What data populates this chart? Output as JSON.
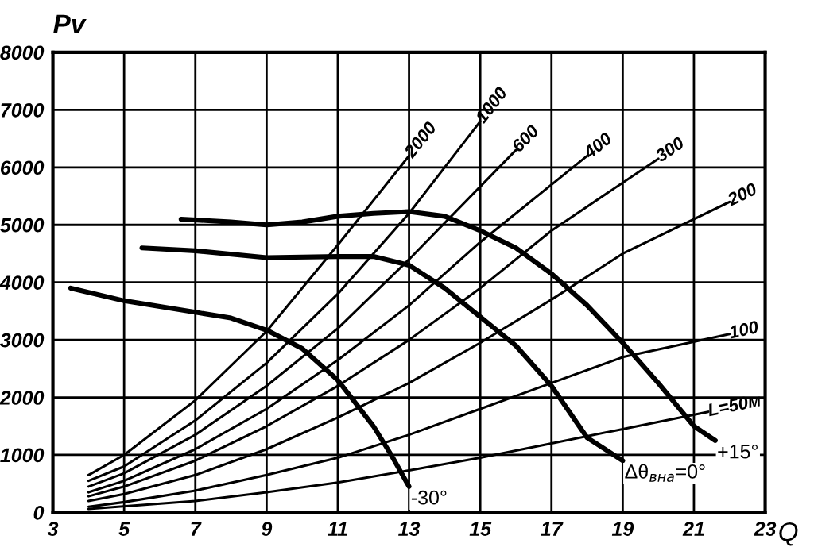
{
  "chart_data": {
    "type": "line",
    "xlabel": "Q",
    "ylabel": "Pv",
    "xlim": [
      3,
      23
    ],
    "ylim": [
      0,
      8000
    ],
    "xticks": [
      3,
      5,
      7,
      9,
      11,
      13,
      15,
      17,
      19,
      21,
      23
    ],
    "yticks": [
      0,
      1000,
      2000,
      3000,
      4000,
      5000,
      6000,
      7000,
      8000
    ],
    "grid": true,
    "legend": false,
    "marker": "none",
    "line_style": "solid",
    "series": [
      {
        "name": "-30°",
        "color": "#000000",
        "x": [
          3.5,
          5,
          7,
          8,
          9,
          10,
          11,
          12,
          12.5,
          13
        ],
        "values": [
          3900,
          3680,
          3480,
          3380,
          3170,
          2850,
          2300,
          1500,
          1000,
          450
        ]
      },
      {
        "name": "Δθ$_{вна}$=0°",
        "color": "#000000",
        "x": [
          5.5,
          7,
          9,
          11,
          12,
          13,
          14,
          15,
          16,
          17,
          18,
          19
        ],
        "values": [
          4600,
          4550,
          4430,
          4450,
          4450,
          4300,
          3900,
          3400,
          2900,
          2200,
          1300,
          900
        ]
      },
      {
        "name": "+15°",
        "color": "#000000",
        "x": [
          6.6,
          8,
          9,
          10,
          11,
          12,
          13,
          14,
          15,
          16,
          17,
          18,
          19,
          20,
          21,
          21.6
        ],
        "values": [
          5100,
          5050,
          5000,
          5050,
          5150,
          5200,
          5230,
          5150,
          4900,
          4600,
          4150,
          3600,
          2950,
          2250,
          1500,
          1250
        ]
      },
      {
        "name": "2000",
        "color": "#000000",
        "x": [
          4,
          5,
          7,
          9,
          11,
          13
        ],
        "values": [
          650,
          1000,
          1950,
          3150,
          4650,
          6200
        ]
      },
      {
        "name": "1000",
        "color": "#000000",
        "x": [
          4,
          5,
          7,
          9,
          11,
          13,
          15
        ],
        "values": [
          550,
          800,
          1600,
          2600,
          3800,
          5200,
          6800
        ]
      },
      {
        "name": "600",
        "color": "#000000",
        "x": [
          4,
          5,
          7,
          9,
          11,
          13,
          16
        ],
        "values": [
          450,
          680,
          1350,
          2200,
          3200,
          4400,
          6300
        ]
      },
      {
        "name": "400",
        "color": "#000000",
        "x": [
          4,
          5,
          7,
          9,
          11,
          13,
          15,
          18
        ],
        "values": [
          350,
          550,
          1100,
          1800,
          2650,
          3600,
          4700,
          6200
        ]
      },
      {
        "name": "300",
        "color": "#000000",
        "x": [
          4,
          5,
          7,
          9,
          11,
          13,
          15,
          17,
          20
        ],
        "values": [
          280,
          450,
          900,
          1500,
          2200,
          3000,
          3900,
          4900,
          6150
        ]
      },
      {
        "name": "200",
        "color": "#000000",
        "x": [
          4,
          5,
          7,
          9,
          11,
          13,
          15,
          17,
          19,
          22
        ],
        "values": [
          200,
          320,
          650,
          1100,
          1650,
          2250,
          2950,
          3700,
          4500,
          5400
        ]
      },
      {
        "name": "100",
        "color": "#000000",
        "x": [
          4,
          5,
          7,
          9,
          11,
          13,
          15,
          17,
          19,
          22
        ],
        "values": [
          100,
          180,
          380,
          650,
          950,
          1350,
          1800,
          2250,
          2700,
          3100
        ]
      },
      {
        "name": "L=50м",
        "color": "#000000",
        "x": [
          4,
          7,
          9,
          11,
          13,
          15,
          17,
          19,
          21.4
        ],
        "values": [
          60,
          200,
          350,
          520,
          730,
          950,
          1200,
          1450,
          1750
        ]
      }
    ]
  }
}
